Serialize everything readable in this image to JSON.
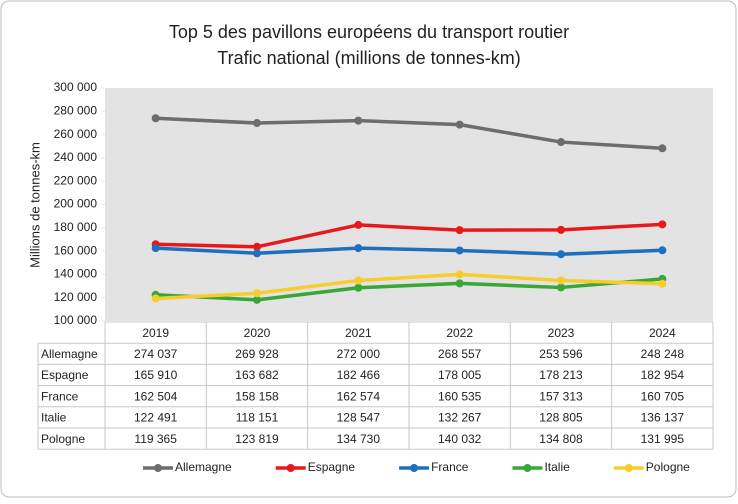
{
  "chart_data": {
    "type": "line",
    "title": "Top 5 des pavillons européens du transport routier",
    "subtitle": "Trafic national (millions de tonnes-km)",
    "y_label": "Millions de tonnes-km",
    "categories": [
      "2019",
      "2020",
      "2021",
      "2022",
      "2023",
      "2024"
    ],
    "ylim": [
      100000,
      300000
    ],
    "yticks": [
      {
        "value": 100000,
        "label": "100 000"
      },
      {
        "value": 120000,
        "label": "120 000"
      },
      {
        "value": 140000,
        "label": "140 000"
      },
      {
        "value": 160000,
        "label": "160 000"
      },
      {
        "value": 180000,
        "label": "180 000"
      },
      {
        "value": 200000,
        "label": "200 000"
      },
      {
        "value": 220000,
        "label": "220 000"
      },
      {
        "value": 240000,
        "label": "240 000"
      },
      {
        "value": 260000,
        "label": "260 000"
      },
      {
        "value": 280000,
        "label": "280 000"
      },
      {
        "value": 300000,
        "label": "300 000"
      }
    ],
    "grid": false,
    "series": [
      {
        "name": "Allemagne",
        "color": "#6d6d6d",
        "values": [
          274037,
          269928,
          272000,
          268557,
          253596,
          248248
        ],
        "value_labels": [
          "274 037",
          "269 928",
          "272 000",
          "268 557",
          "253 596",
          "248 248"
        ]
      },
      {
        "name": "Espagne",
        "color": "#e8191b",
        "values": [
          165910,
          163682,
          182466,
          178005,
          178213,
          182954
        ],
        "value_labels": [
          "165 910",
          "163 682",
          "182 466",
          "178 005",
          "178 213",
          "182 954"
        ]
      },
      {
        "name": "France",
        "color": "#1f6fbf",
        "values": [
          162504,
          158158,
          162574,
          160535,
          157313,
          160705
        ],
        "value_labels": [
          "162 504",
          "158 158",
          "162 574",
          "160 535",
          "157 313",
          "160 705"
        ]
      },
      {
        "name": "Italie",
        "color": "#3aa637",
        "values": [
          122491,
          118151,
          128547,
          132267,
          128805,
          136137
        ],
        "value_labels": [
          "122 491",
          "118 151",
          "128 547",
          "132 267",
          "128 805",
          "136 137"
        ]
      },
      {
        "name": "Pologne",
        "color": "#f7cd2e",
        "values": [
          119365,
          123819,
          134730,
          140032,
          134808,
          131995
        ],
        "value_labels": [
          "119 365",
          "123 819",
          "134 730",
          "140 032",
          "134 808",
          "131 995"
        ]
      }
    ]
  }
}
